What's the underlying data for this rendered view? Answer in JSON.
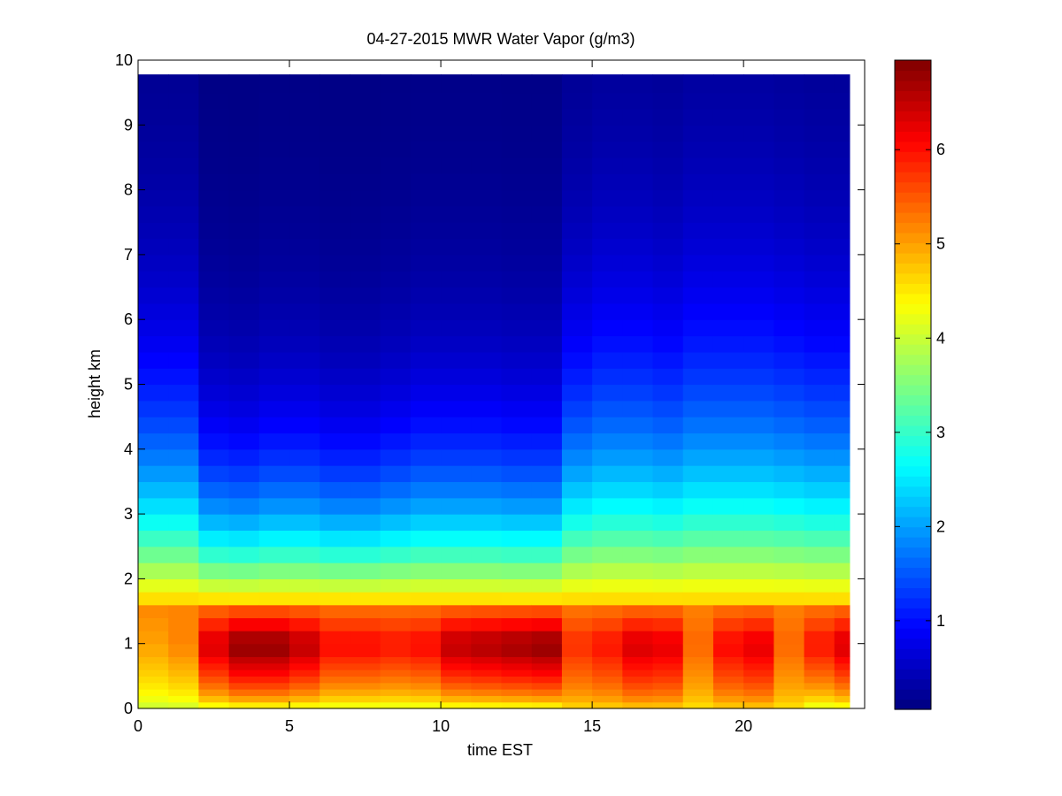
{
  "chart_data": {
    "type": "heatmap",
    "title": "04-27-2015 MWR Water Vapor (g/m3)",
    "xlabel": "time EST",
    "ylabel": "height km",
    "xlim": [
      0,
      24
    ],
    "ylim": [
      0,
      10
    ],
    "xticks": [
      0,
      5,
      10,
      15,
      20
    ],
    "yticks": [
      0,
      1,
      2,
      3,
      4,
      5,
      6,
      7,
      8,
      9,
      10
    ],
    "colorbar": {
      "range": [
        0.06,
        6.95
      ],
      "ticks": [
        1,
        2,
        3,
        4,
        5,
        6
      ],
      "colormap": "jet",
      "colors": [
        "#00008f",
        "#0000ff",
        "#00ffff",
        "#ffff00",
        "#ff0000",
        "#800000"
      ]
    },
    "time_hours": [
      0,
      1,
      2,
      3,
      4,
      5,
      6,
      7,
      8,
      9,
      10,
      11,
      12,
      13,
      14,
      15,
      16,
      17,
      18,
      19,
      20,
      21,
      22,
      23
    ],
    "height_km": [
      0.0,
      0.1,
      0.2,
      0.3,
      0.4,
      0.5,
      0.6,
      0.7,
      0.8,
      1.0,
      1.2,
      1.4,
      1.6,
      1.8,
      2.0,
      2.25,
      2.5,
      2.75,
      3.0,
      3.25,
      3.5,
      3.75,
      4.0,
      4.25,
      4.5,
      4.75,
      5.0,
      5.25,
      5.5,
      5.75,
      6.0,
      6.25,
      6.5,
      6.75,
      7.0,
      7.25,
      7.5,
      7.75,
      8.0,
      8.25,
      8.5,
      8.75,
      9.0,
      9.25,
      9.5,
      9.75
    ],
    "grid": false,
    "colorbar_position": "right"
  }
}
